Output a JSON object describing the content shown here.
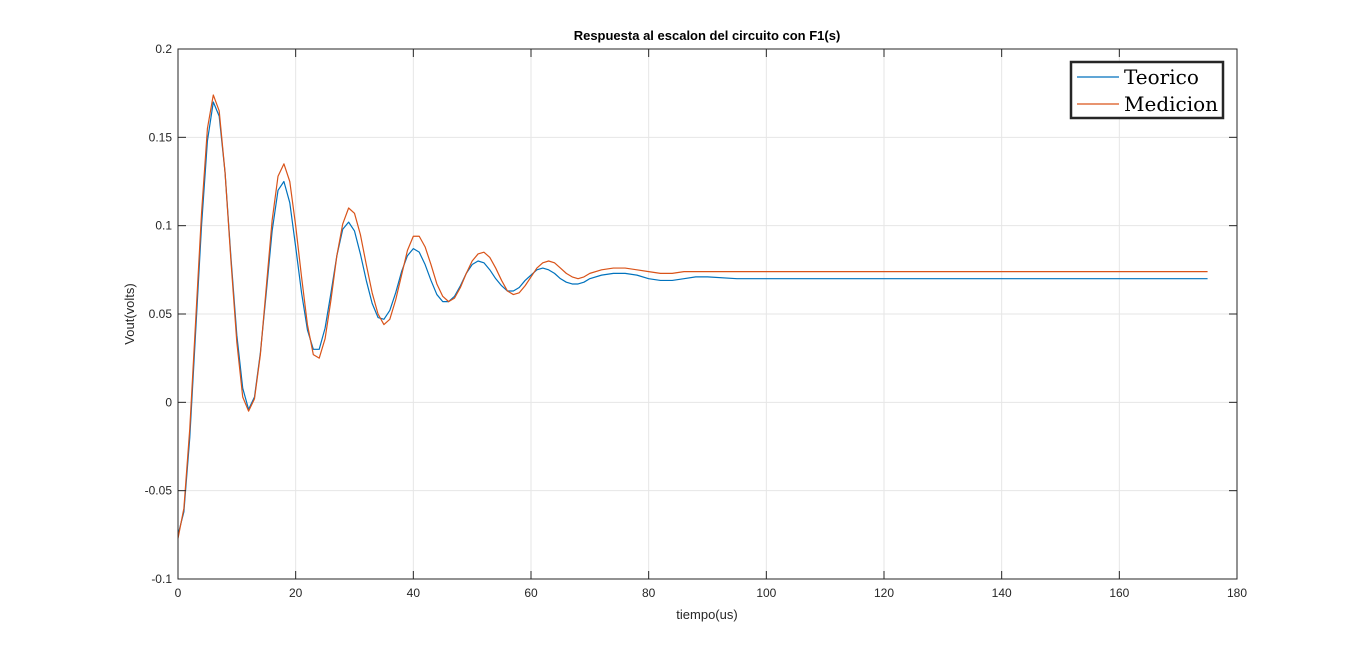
{
  "chart_data": {
    "type": "line",
    "title": "Respuesta al escalon del circuito con F1(s)",
    "xlabel": "tiempo(us)",
    "ylabel": "Vout(volts)",
    "xlim": [
      0,
      180
    ],
    "ylim": [
      -0.1,
      0.2
    ],
    "xticks": [
      0,
      20,
      40,
      60,
      80,
      100,
      120,
      140,
      160,
      180
    ],
    "xtick_labels": [
      "0",
      "20",
      "40",
      "60",
      "80",
      "100",
      "120",
      "140",
      "160",
      "180"
    ],
    "yticks": [
      -0.1,
      -0.05,
      0,
      0.05,
      0.1,
      0.15,
      0.2
    ],
    "ytick_labels": [
      "-0.1",
      "-0.05",
      "0",
      "0.05",
      "0.1",
      "0.15",
      "0.2"
    ],
    "grid": true,
    "legend_position": "top-right",
    "series": [
      {
        "name": "Teorico",
        "color": "#0072BD",
        "x": [
          0,
          1,
          2,
          3,
          4,
          5,
          6,
          7,
          8,
          9,
          10,
          11,
          12,
          13,
          14,
          15,
          16,
          17,
          18,
          19,
          20,
          21,
          22,
          23,
          24,
          25,
          26,
          27,
          28,
          29,
          30,
          31,
          32,
          33,
          34,
          35,
          36,
          37,
          38,
          39,
          40,
          41,
          42,
          43,
          44,
          45,
          46,
          47,
          48,
          49,
          50,
          51,
          52,
          53,
          54,
          55,
          56,
          57,
          58,
          59,
          60,
          61,
          62,
          63,
          64,
          65,
          66,
          67,
          68,
          69,
          70,
          72,
          74,
          76,
          78,
          80,
          82,
          84,
          86,
          88,
          90,
          95,
          100,
          105,
          110,
          115,
          120,
          130,
          140,
          150,
          160,
          170,
          175
        ],
        "y": [
          -0.075,
          -0.062,
          -0.02,
          0.04,
          0.1,
          0.148,
          0.17,
          0.162,
          0.13,
          0.082,
          0.038,
          0.008,
          -0.004,
          0.003,
          0.028,
          0.062,
          0.097,
          0.12,
          0.125,
          0.113,
          0.088,
          0.062,
          0.041,
          0.03,
          0.03,
          0.042,
          0.062,
          0.083,
          0.098,
          0.102,
          0.097,
          0.084,
          0.069,
          0.056,
          0.048,
          0.047,
          0.052,
          0.062,
          0.074,
          0.083,
          0.087,
          0.085,
          0.078,
          0.069,
          0.061,
          0.057,
          0.057,
          0.06,
          0.066,
          0.073,
          0.078,
          0.08,
          0.079,
          0.075,
          0.07,
          0.066,
          0.063,
          0.063,
          0.065,
          0.069,
          0.072,
          0.075,
          0.076,
          0.075,
          0.073,
          0.07,
          0.068,
          0.067,
          0.067,
          0.068,
          0.07,
          0.072,
          0.073,
          0.073,
          0.072,
          0.07,
          0.069,
          0.069,
          0.07,
          0.071,
          0.071,
          0.07,
          0.07,
          0.07,
          0.07,
          0.07,
          0.07,
          0.07,
          0.07,
          0.07,
          0.07,
          0.07,
          0.07
        ]
      },
      {
        "name": "Medicion",
        "color": "#D95319",
        "x": [
          0,
          1,
          2,
          3,
          4,
          5,
          6,
          7,
          8,
          9,
          10,
          11,
          12,
          13,
          14,
          15,
          16,
          17,
          18,
          19,
          20,
          21,
          22,
          23,
          24,
          25,
          26,
          27,
          28,
          29,
          30,
          31,
          32,
          33,
          34,
          35,
          36,
          37,
          38,
          39,
          40,
          41,
          42,
          43,
          44,
          45,
          46,
          47,
          48,
          49,
          50,
          51,
          52,
          53,
          54,
          55,
          56,
          57,
          58,
          59,
          60,
          61,
          62,
          63,
          64,
          65,
          66,
          67,
          68,
          69,
          70,
          72,
          74,
          76,
          78,
          80,
          82,
          84,
          86,
          88,
          90,
          95,
          100,
          105,
          110,
          115,
          120,
          130,
          140,
          150,
          160,
          170,
          175
        ],
        "y": [
          -0.077,
          -0.06,
          -0.015,
          0.046,
          0.107,
          0.155,
          0.174,
          0.165,
          0.13,
          0.08,
          0.034,
          0.003,
          -0.005,
          0.002,
          0.027,
          0.065,
          0.103,
          0.128,
          0.135,
          0.125,
          0.1,
          0.071,
          0.044,
          0.027,
          0.025,
          0.036,
          0.058,
          0.083,
          0.101,
          0.11,
          0.107,
          0.095,
          0.078,
          0.062,
          0.05,
          0.044,
          0.047,
          0.058,
          0.072,
          0.086,
          0.094,
          0.094,
          0.088,
          0.078,
          0.067,
          0.06,
          0.057,
          0.059,
          0.065,
          0.073,
          0.08,
          0.084,
          0.085,
          0.082,
          0.076,
          0.069,
          0.063,
          0.061,
          0.062,
          0.066,
          0.071,
          0.076,
          0.079,
          0.08,
          0.079,
          0.076,
          0.073,
          0.071,
          0.07,
          0.071,
          0.073,
          0.075,
          0.076,
          0.076,
          0.075,
          0.074,
          0.073,
          0.073,
          0.074,
          0.074,
          0.074,
          0.074,
          0.074,
          0.074,
          0.074,
          0.074,
          0.074,
          0.074,
          0.074,
          0.074,
          0.074,
          0.074,
          0.074
        ]
      }
    ]
  }
}
